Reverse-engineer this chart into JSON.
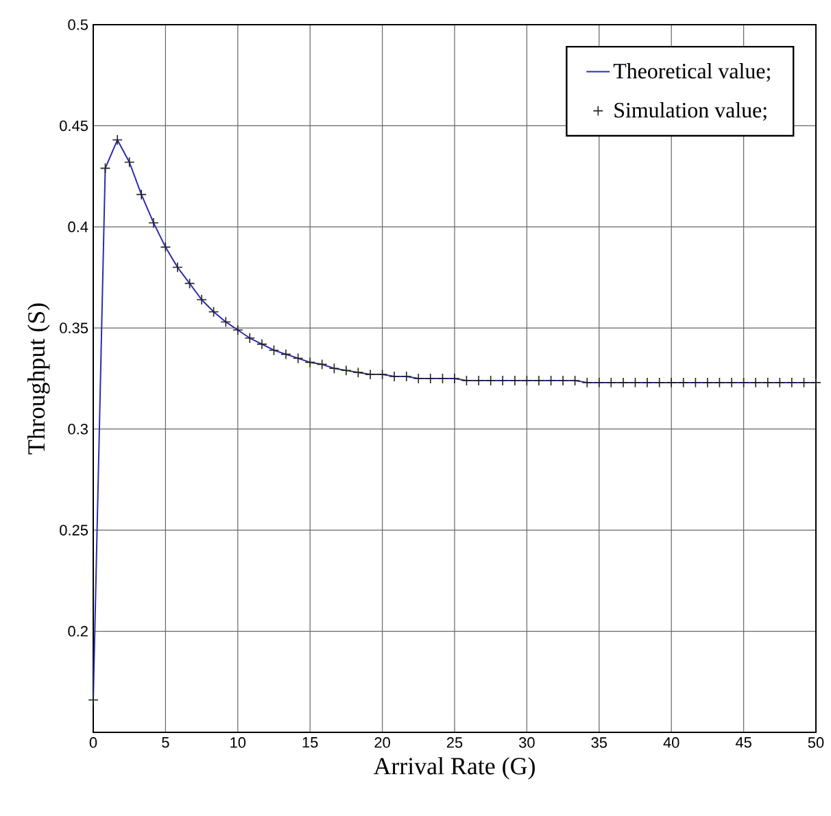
{
  "chart_data": {
    "type": "line",
    "xlabel": "Arrival Rate (G)",
    "ylabel": "Throughput (S)",
    "xlim": [
      0,
      50
    ],
    "ylim": [
      0.15,
      0.5
    ],
    "xticks": [
      0,
      5,
      10,
      15,
      20,
      25,
      30,
      35,
      40,
      45,
      50
    ],
    "yticks": [
      0.2,
      0.25,
      0.3,
      0.35,
      0.4,
      0.45,
      0.5
    ],
    "grid": true,
    "legend": "top right",
    "x": [
      0,
      0.83,
      1.67,
      2.5,
      3.33,
      4.17,
      5,
      5.83,
      6.67,
      7.5,
      8.33,
      9.17,
      10,
      10.83,
      11.67,
      12.5,
      13.33,
      14.17,
      15,
      15.83,
      16.67,
      17.5,
      18.33,
      19.17,
      20,
      20.83,
      21.67,
      22.5,
      23.33,
      24.17,
      25,
      25.83,
      26.67,
      27.5,
      28.33,
      29.17,
      30,
      30.83,
      31.67,
      32.5,
      33.33,
      34.17,
      35,
      35.83,
      36.67,
      37.5,
      38.33,
      39.17,
      40,
      40.83,
      41.67,
      42.5,
      43.33,
      44.17,
      45,
      45.83,
      46.67,
      47.5,
      48.33,
      49.17,
      50
    ],
    "series": [
      {
        "name": "Theoretical value;",
        "color": "#2b2bb0",
        "line_style": "solid",
        "marker": "none",
        "values": [
          0.166,
          0.429,
          0.443,
          0.432,
          0.416,
          0.402,
          0.39,
          0.38,
          0.372,
          0.364,
          0.358,
          0.353,
          0.349,
          0.345,
          0.342,
          0.339,
          0.337,
          0.335,
          0.333,
          0.332,
          0.33,
          0.329,
          0.328,
          0.327,
          0.327,
          0.326,
          0.326,
          0.325,
          0.325,
          0.325,
          0.325,
          0.324,
          0.324,
          0.324,
          0.324,
          0.324,
          0.324,
          0.324,
          0.324,
          0.324,
          0.324,
          0.323,
          0.323,
          0.323,
          0.323,
          0.323,
          0.323,
          0.323,
          0.323,
          0.323,
          0.323,
          0.323,
          0.323,
          0.323,
          0.323,
          0.323,
          0.323,
          0.323,
          0.323,
          0.323,
          0.323
        ]
      },
      {
        "name": "Simulation value;",
        "type": "scatter",
        "color": "#222222",
        "marker": "cross",
        "values": [
          0.166,
          0.429,
          0.443,
          0.432,
          0.416,
          0.402,
          0.39,
          0.38,
          0.372,
          0.364,
          0.358,
          0.353,
          0.349,
          0.345,
          0.342,
          0.339,
          0.337,
          0.335,
          0.333,
          0.332,
          0.33,
          0.329,
          0.328,
          0.327,
          0.327,
          0.326,
          0.326,
          0.325,
          0.325,
          0.325,
          0.325,
          0.324,
          0.324,
          0.324,
          0.324,
          0.324,
          0.324,
          0.324,
          0.324,
          0.324,
          0.324,
          0.323,
          0.323,
          0.323,
          0.323,
          0.323,
          0.323,
          0.323,
          0.323,
          0.323,
          0.323,
          0.323,
          0.323,
          0.323,
          0.323,
          0.323,
          0.323,
          0.323,
          0.323,
          0.323,
          0.323
        ]
      }
    ]
  }
}
